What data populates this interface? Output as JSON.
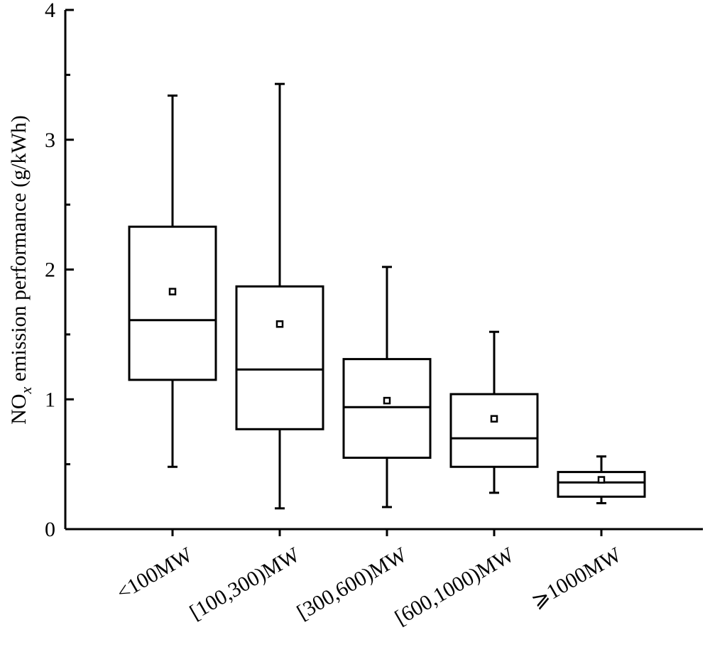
{
  "chart_data": {
    "type": "box",
    "ylabel": [
      "NO",
      "x",
      " emission performance (g/kWh)"
    ],
    "categories": [
      "<100MW",
      "[100,300)MW",
      "[300,600)MW",
      "[600,1000)MW",
      "⩾1000MW"
    ],
    "whisker_low": [
      0.48,
      0.16,
      0.17,
      0.28,
      0.2
    ],
    "q1": [
      1.15,
      0.77,
      0.55,
      0.48,
      0.25
    ],
    "median": [
      1.61,
      1.23,
      0.94,
      0.7,
      0.36
    ],
    "q3": [
      2.33,
      1.87,
      1.31,
      1.04,
      0.44
    ],
    "whisker_high": [
      3.34,
      3.43,
      2.02,
      1.52,
      0.56
    ],
    "mean": [
      1.83,
      1.58,
      0.99,
      0.85,
      0.38
    ],
    "color": "#000000",
    "ylim": [
      0,
      4
    ],
    "yticks": [
      0,
      1,
      2,
      3,
      4
    ],
    "minor_yticks": [
      0.5,
      1.5,
      2.5,
      3.5
    ]
  }
}
